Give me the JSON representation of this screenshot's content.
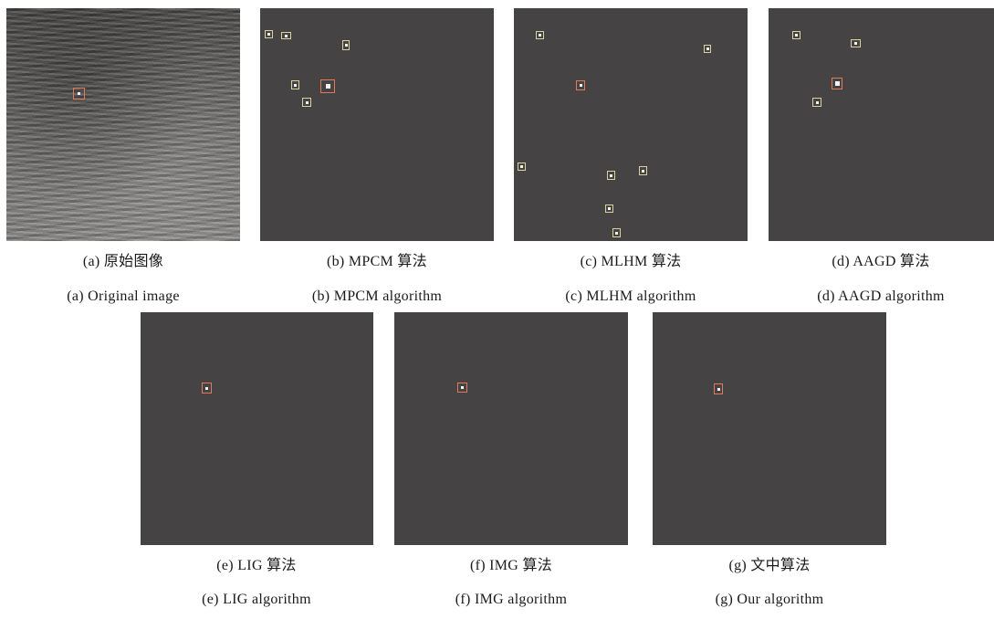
{
  "panels": [
    {
      "id": "a",
      "caption_zh": "(a) 原始图像",
      "caption_en": "(a) Original image"
    },
    {
      "id": "b",
      "caption_zh": "(b) MPCM 算法",
      "caption_en": "(b) MPCM algorithm"
    },
    {
      "id": "c",
      "caption_zh": "(c) MLHM 算法",
      "caption_en": "(c) MLHM algorithm"
    },
    {
      "id": "d",
      "caption_zh": "(d) AAGD 算法",
      "caption_en": "(d) AAGD algorithm"
    },
    {
      "id": "e",
      "caption_zh": "(e) LIG 算法",
      "caption_en": "(e) LIG algorithm"
    },
    {
      "id": "f",
      "caption_zh": "(f) IMG 算法",
      "caption_en": "(f) IMG algorithm"
    },
    {
      "id": "g",
      "caption_zh": "(g) 文中算法",
      "caption_en": "(g) Our algorithm"
    }
  ],
  "colors": {
    "panel_background": "#454343",
    "false_detection_box": "#d8d39a",
    "true_target_box": "#e07a5a"
  }
}
